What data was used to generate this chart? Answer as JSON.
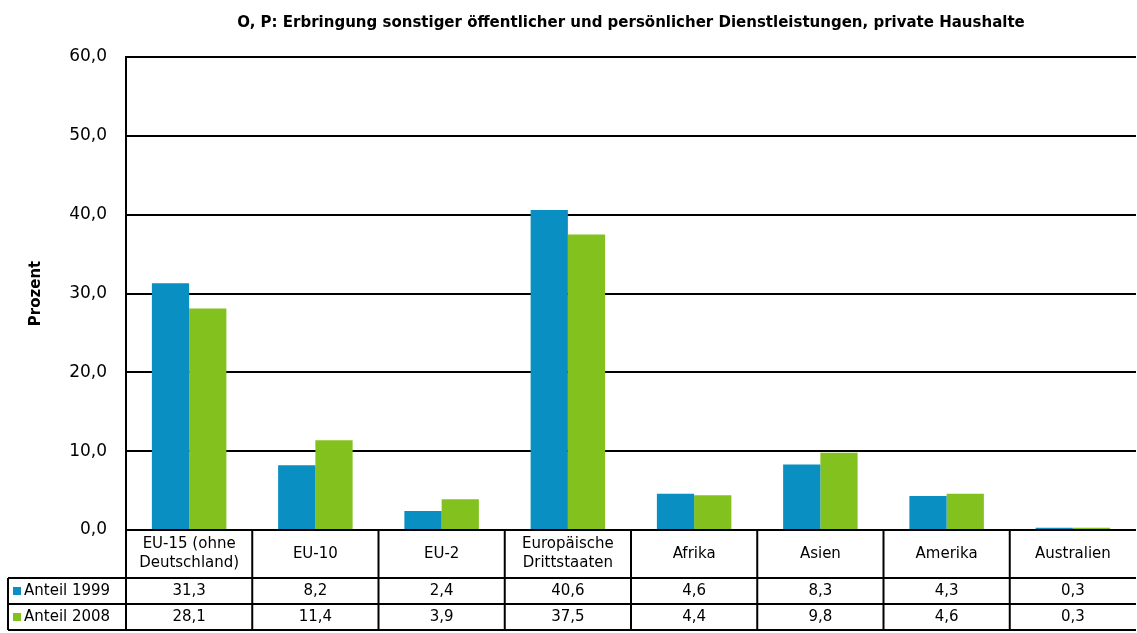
{
  "chart_data": {
    "type": "bar",
    "title": "O, P: Erbringung sonstiger öffentlicher und persönlicher Dienstleistungen, private Haushalte",
    "ylabel": "Prozent",
    "categories": [
      "EU-15 (ohne Deutschland)",
      "EU-10",
      "EU-2",
      "Europäische Drittstaaten",
      "Afrika",
      "Asien",
      "Amerika",
      "Australien"
    ],
    "series": [
      {
        "name": "Anteil 1999",
        "color": "#0a8fc2",
        "values": [
          31.3,
          8.2,
          2.4,
          40.6,
          4.6,
          8.3,
          4.3,
          0.3
        ],
        "value_labels": [
          "31,3",
          "8,2",
          "2,4",
          "40,6",
          "4,6",
          "8,3",
          "4,3",
          "0,3"
        ]
      },
      {
        "name": "Anteil 2008",
        "color": "#83c21e",
        "values": [
          28.1,
          11.4,
          3.9,
          37.5,
          4.4,
          9.8,
          4.6,
          0.3
        ],
        "value_labels": [
          "28,1",
          "11,4",
          "3,9",
          "37,5",
          "4,4",
          "9,8",
          "4,6",
          "0,3"
        ]
      }
    ],
    "ylim": [
      0,
      60
    ],
    "yticks": [
      {
        "value": 0,
        "label": "0,0"
      },
      {
        "value": 10,
        "label": "10,0"
      },
      {
        "value": 20,
        "label": "20,0"
      },
      {
        "value": 30,
        "label": "30,0"
      },
      {
        "value": 40,
        "label": "40,0"
      },
      {
        "value": 50,
        "label": "50,0"
      },
      {
        "value": 60,
        "label": "60,0"
      }
    ],
    "grid": "y",
    "legend": "bottom left"
  }
}
